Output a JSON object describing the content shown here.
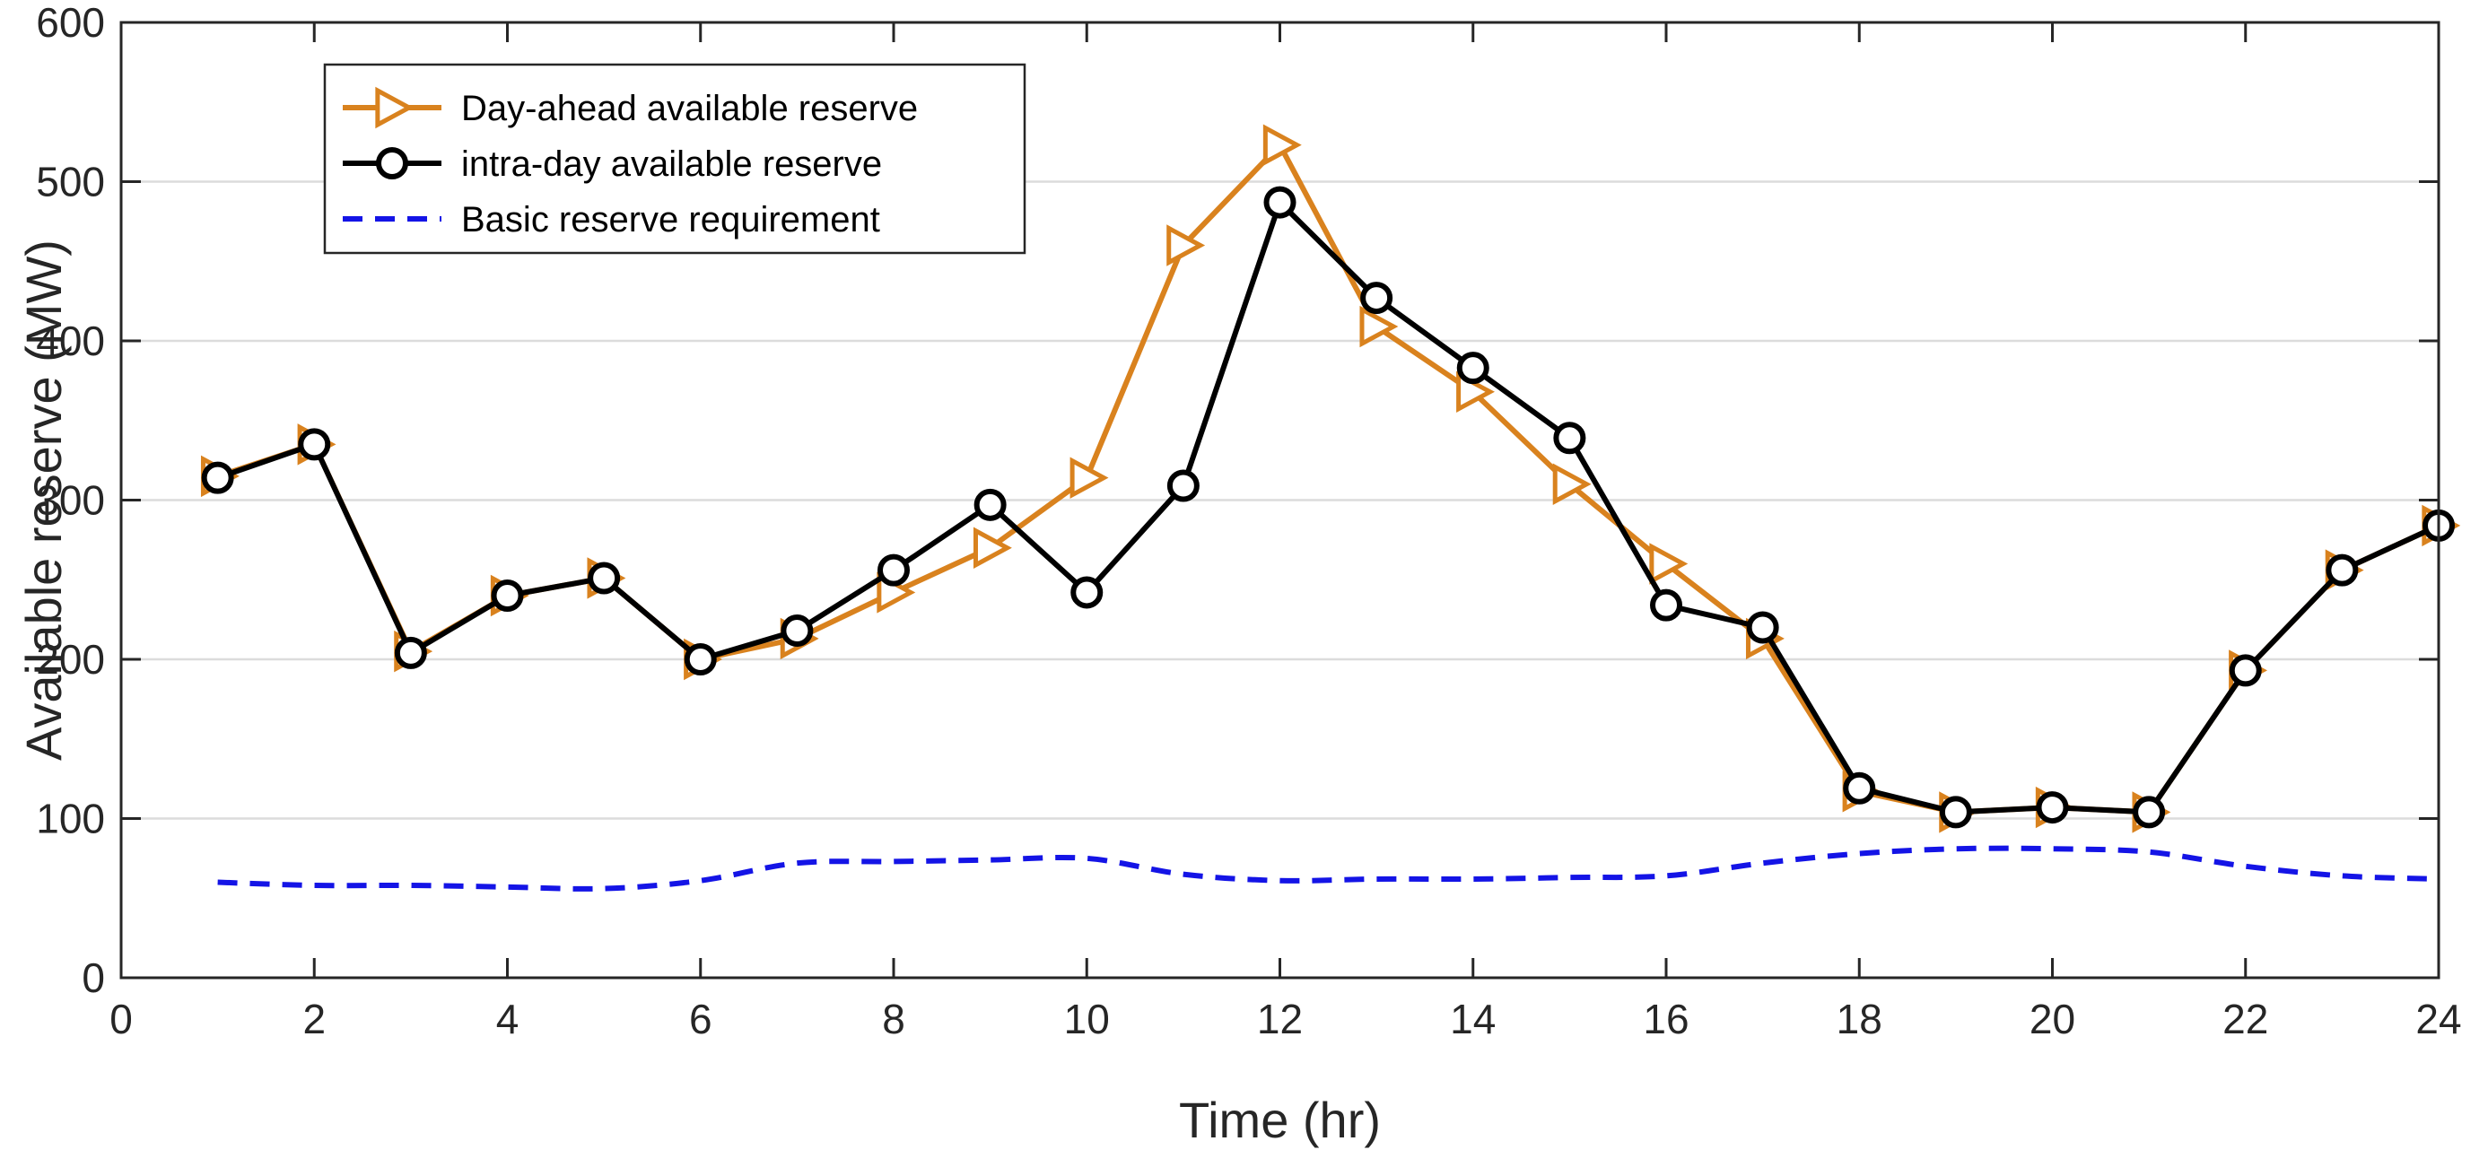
{
  "chart_data": {
    "type": "line",
    "xlabel": "Time (hr)",
    "ylabel": "Available reserve (MW)",
    "xlim": [
      0,
      24
    ],
    "ylim": [
      0,
      600
    ],
    "xticks": [
      0,
      2,
      4,
      6,
      8,
      10,
      12,
      14,
      16,
      18,
      20,
      22,
      24
    ],
    "yticks": [
      0,
      100,
      200,
      300,
      400,
      500,
      600
    ],
    "grid": "horizontal",
    "legend_position": "top-left",
    "x": [
      1,
      2,
      3,
      4,
      5,
      6,
      7,
      8,
      9,
      10,
      11,
      12,
      13,
      14,
      15,
      16,
      17,
      18,
      19,
      20,
      21,
      22,
      23,
      24
    ],
    "series": [
      {
        "name": "Day-ahead available reserve",
        "color": "#D9821E",
        "marker": "triangle-right",
        "values": [
          315,
          335,
          205,
          240,
          251,
          200,
          213,
          242,
          270,
          314,
          460,
          523,
          409,
          368,
          310,
          260,
          213,
          117,
          104,
          107,
          104,
          193,
          256,
          284
        ]
      },
      {
        "name": "intra-day available reserve",
        "color": "#000000",
        "marker": "circle",
        "values": [
          314,
          335,
          204,
          240,
          251,
          200,
          218,
          256,
          297,
          242,
          309,
          487,
          427,
          383,
          339,
          234,
          220,
          119,
          104,
          107,
          104,
          193,
          256,
          284
        ]
      },
      {
        "name": "Basic reserve requirement",
        "color": "#1414E6",
        "marker": "none",
        "line_style": "dashed",
        "values": [
          60,
          58,
          58,
          57,
          56,
          61,
          72,
          73,
          74,
          75,
          65,
          61,
          62,
          62,
          63,
          64,
          72,
          78,
          81,
          81,
          79,
          70,
          64,
          62
        ]
      }
    ]
  }
}
